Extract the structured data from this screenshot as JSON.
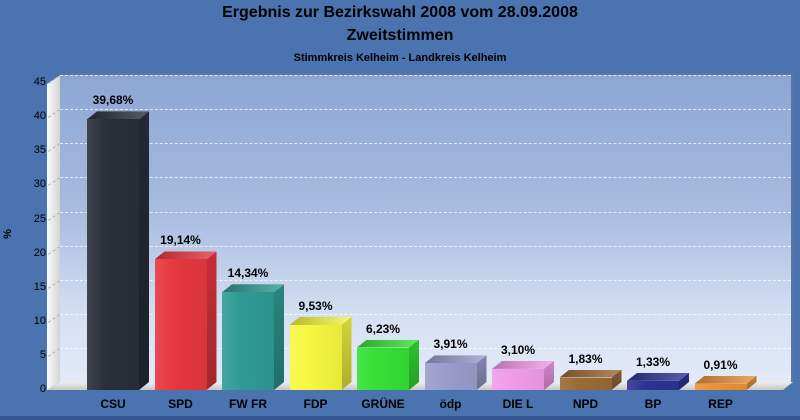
{
  "title": {
    "line1": "Ergebnis zur Bezirkswahl 2008 vom 28.09.2008",
    "line2": "Zweitstimmen",
    "line3": "Stimmkreis Kelheim - Landkreis Kelheim"
  },
  "chart_data": {
    "type": "bar",
    "style": "3d-bars",
    "title": "Ergebnis zur Bezirkswahl 2008 vom 28.09.2008",
    "subtitle": "Zweitstimmen",
    "subsubtitle": "Stimmkreis Kelheim - Landkreis Kelheim",
    "categories": [
      "CSU",
      "SPD",
      "FW FR",
      "FDP",
      "GRÜNE",
      "ödp",
      "DIE L",
      "NPD",
      "BP",
      "REP"
    ],
    "values": [
      39.68,
      19.14,
      14.34,
      9.53,
      6.23,
      3.91,
      3.1,
      1.83,
      1.33,
      0.91
    ],
    "value_labels": [
      "39,68%",
      "19,14%",
      "14,34%",
      "9,53%",
      "6,23%",
      "3,91%",
      "3,10%",
      "1,83%",
      "1,33%",
      "0,91%"
    ],
    "bar_colors": [
      "#2A2F3A",
      "#E63740",
      "#2F9B95",
      "#F7F740",
      "#35E135",
      "#9A9DCB",
      "#F29BE8",
      "#9A6A33",
      "#2F3295",
      "#E99238"
    ],
    "xlabel": "",
    "ylabel": "%",
    "ylim": [
      0,
      45
    ],
    "y_ticks": [
      0,
      5,
      10,
      15,
      20,
      25,
      30,
      35,
      40,
      45
    ],
    "grid": "horizontal-dashed",
    "legend": "none"
  },
  "colors": {
    "background": "#4B73B0",
    "plot_gradient_top": "#8CA6D3",
    "plot_gradient_bottom": "#E3EAF8",
    "frame": "#5E73A4",
    "wall": "#E8E8E8",
    "text": "#000000"
  }
}
